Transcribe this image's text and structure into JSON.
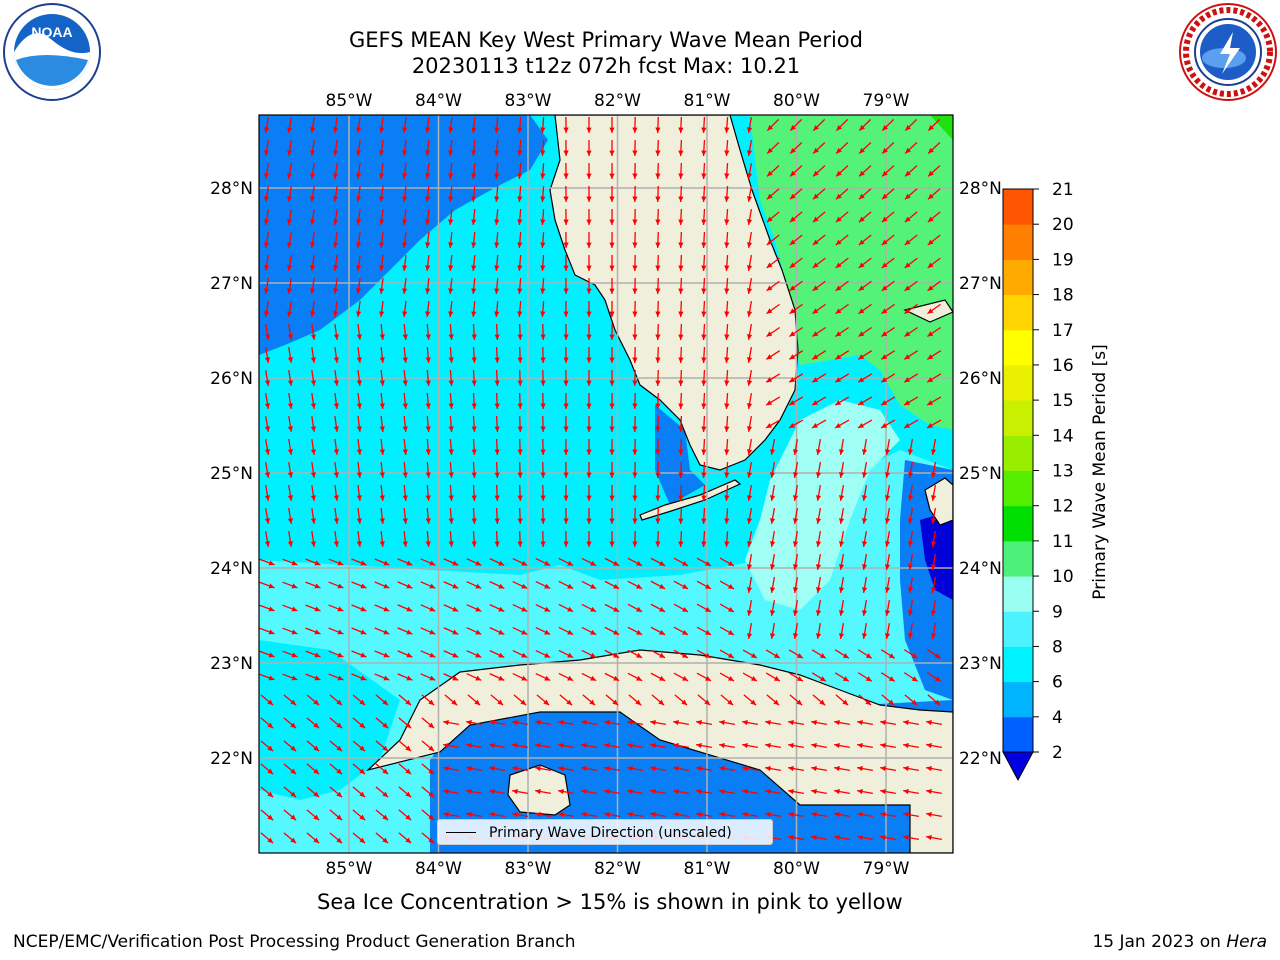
{
  "title_line1": "GEFS MEAN Key West Primary Wave Mean Period",
  "title_line2": "20230113 t12z 072h fcst   Max: 10.21",
  "lon_labels": [
    "85°W",
    "84°W",
    "83°W",
    "82°W",
    "81°W",
    "80°W",
    "79°W"
  ],
  "lat_labels": [
    "28°N",
    "27°N",
    "26°N",
    "25°N",
    "24°N",
    "23°N",
    "22°N"
  ],
  "colorbar": {
    "label": "Primary Wave Mean Period [s]",
    "ticks": [
      "2",
      "4",
      "6",
      "8",
      "9",
      "10",
      "11",
      "12",
      "13",
      "14",
      "15",
      "16",
      "17",
      "18",
      "19",
      "20",
      "21"
    ],
    "colors": [
      "#0060ff",
      "#00b4ff",
      "#00f2ff",
      "#4df2ff",
      "#99fff0",
      "#4df078",
      "#00e000",
      "#55ee00",
      "#99ee00",
      "#c8f000",
      "#e8f000",
      "#ffff00",
      "#ffd400",
      "#ffaa00",
      "#ff8000",
      "#ff5500",
      "#ff2000",
      "#ff0000"
    ],
    "under_color": "#0000e0"
  },
  "legend_label": "Primary Wave Direction (unscaled)",
  "bottom_note": "Sea Ice Concentration > 15% is shown in pink to yellow",
  "footer_left": "NCEP/EMC/Verification Post Processing Product Generation Branch",
  "footer_right_date": "15 Jan 2023 on",
  "footer_right_host": "Hera",
  "map_colors": {
    "land": "#efefdc",
    "coast": "#000000",
    "grid": "#b0b0b0",
    "arrow": "#ff0000",
    "p2_4": "#0a7ff5",
    "p4_6": "#00f0ff",
    "p6_8": "#55f8ff",
    "p8_9": "#a0fff4",
    "p9_10": "#55f27a",
    "p10_11": "#20e010",
    "p_low": "#0000d8"
  }
}
